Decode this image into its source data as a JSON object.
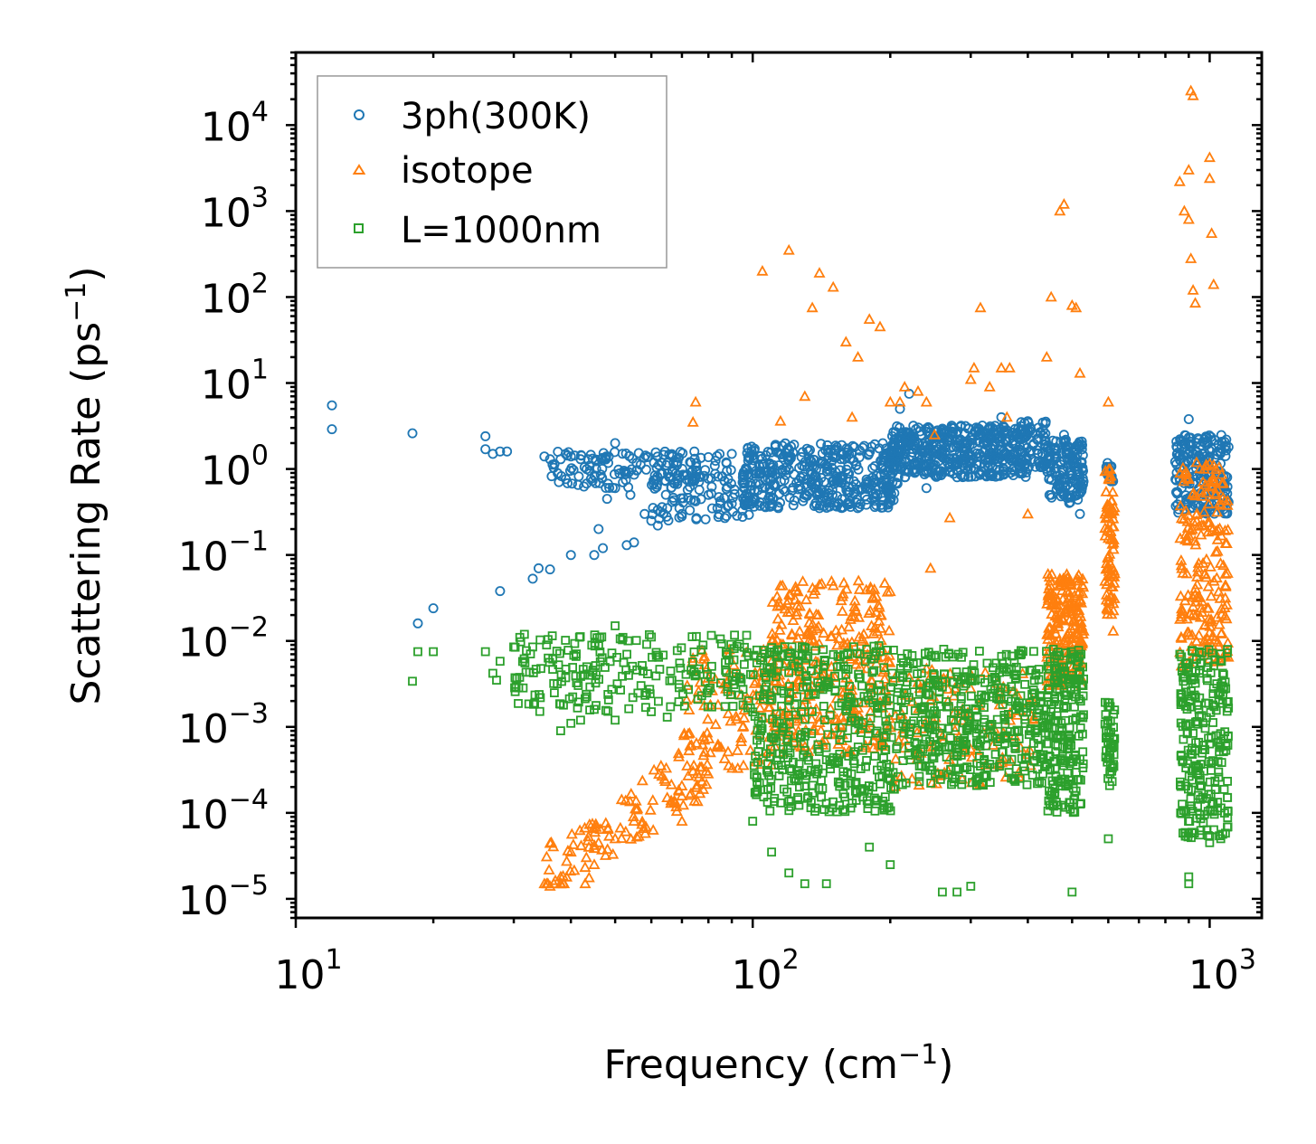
{
  "chart_data": {
    "type": "scatter",
    "xscale": "log",
    "yscale": "log",
    "xlim": [
      10,
      1300
    ],
    "ylim": [
      6e-06,
      70000
    ],
    "x_ticks": [
      {
        "value": 10,
        "base": "10",
        "exp": "1"
      },
      {
        "value": 100,
        "base": "10",
        "exp": "2"
      },
      {
        "value": 1000,
        "base": "10",
        "exp": "3"
      }
    ],
    "y_ticks": [
      {
        "value": 1e-05,
        "base": "10",
        "exp": "−5"
      },
      {
        "value": 0.0001,
        "base": "10",
        "exp": "−4"
      },
      {
        "value": 0.001,
        "base": "10",
        "exp": "−3"
      },
      {
        "value": 0.01,
        "base": "10",
        "exp": "−2"
      },
      {
        "value": 0.1,
        "base": "10",
        "exp": "−1"
      },
      {
        "value": 1,
        "base": "10",
        "exp": "0"
      },
      {
        "value": 10,
        "base": "10",
        "exp": "1"
      },
      {
        "value": 100,
        "base": "10",
        "exp": "2"
      },
      {
        "value": 1000,
        "base": "10",
        "exp": "3"
      },
      {
        "value": 10000,
        "base": "10",
        "exp": "4"
      }
    ],
    "xlabel": {
      "text": "Frequency (cm",
      "sup": "−1",
      "suffix": ")"
    },
    "ylabel": {
      "text": "Scattering Rate (ps",
      "sup": "−1",
      "suffix": ")"
    },
    "legend_position": "top-left",
    "series": [
      {
        "name": "3ph(300K)",
        "color": "#1f77b4",
        "marker": "circle",
        "points": [
          [
            12,
            5.5
          ],
          [
            12,
            2.9
          ],
          [
            18,
            2.6
          ],
          [
            18.5,
            0.016
          ],
          [
            20,
            0.024
          ],
          [
            26,
            2.4
          ],
          [
            26,
            1.7
          ],
          [
            27,
            1.5
          ],
          [
            28,
            1.6
          ],
          [
            29,
            1.6
          ],
          [
            28,
            0.038
          ],
          [
            33,
            0.053
          ],
          [
            34,
            0.07
          ],
          [
            35,
            1.4
          ],
          [
            36,
            1.3
          ],
          [
            36,
            0.068
          ],
          [
            38,
            1.3
          ],
          [
            40,
            1.4
          ],
          [
            40,
            0.1
          ],
          [
            42,
            1.3
          ],
          [
            44,
            1.1
          ],
          [
            45,
            0.1
          ],
          [
            46,
            0.2
          ],
          [
            47,
            0.12
          ],
          [
            48,
            0.45
          ],
          [
            50,
            0.6
          ],
          [
            50,
            2.0
          ],
          [
            52,
            0.7
          ],
          [
            53,
            0.13
          ],
          [
            54,
            0.5
          ],
          [
            55,
            0.14
          ],
          [
            58,
            0.3
          ],
          [
            60,
            0.25
          ],
          [
            62,
            0.22
          ],
          [
            65,
            0.35
          ],
          [
            70,
            0.3
          ],
          [
            75,
            0.42
          ],
          [
            80,
            0.5
          ],
          [
            85,
            0.4
          ],
          [
            90,
            1.5
          ],
          [
            95,
            0.7
          ],
          [
            105,
            0.6
          ],
          [
            130,
            0.5
          ],
          [
            140,
            0.35
          ],
          [
            180,
            0.7
          ],
          [
            200,
            0.6
          ],
          [
            210,
            5.0
          ],
          [
            220,
            7.5
          ],
          [
            240,
            0.6
          ],
          [
            260,
            1.5
          ],
          [
            300,
            2.3
          ],
          [
            330,
            0.9
          ],
          [
            350,
            4.0
          ],
          [
            400,
            3.6
          ],
          [
            420,
            1.5
          ],
          [
            450,
            0.5
          ],
          [
            480,
            2.5
          ],
          [
            500,
            1.2
          ],
          [
            520,
            0.3
          ],
          [
            600,
            0.9
          ],
          [
            860,
            1.0
          ],
          [
            900,
            3.8
          ],
          [
            920,
            0.5
          ],
          [
            1000,
            1.4
          ],
          [
            1050,
            0.6
          ],
          [
            1100,
            1.8
          ]
        ],
        "bands": [
          {
            "x0": 36,
            "x1": 90,
            "y0": 0.6,
            "y1": 1.6,
            "n": 160
          },
          {
            "x0": 60,
            "x1": 100,
            "y0": 0.25,
            "y1": 0.9,
            "n": 80
          },
          {
            "x0": 95,
            "x1": 210,
            "y0": 0.35,
            "y1": 2.0,
            "n": 420
          },
          {
            "x0": 200,
            "x1": 400,
            "y0": 0.8,
            "y1": 3.2,
            "n": 460
          },
          {
            "x0": 380,
            "x1": 440,
            "y0": 1.0,
            "y1": 3.6,
            "n": 60
          },
          {
            "x0": 440,
            "x1": 530,
            "y0": 0.4,
            "y1": 2.2,
            "n": 140
          },
          {
            "x0": 590,
            "x1": 615,
            "y0": 0.7,
            "y1": 1.2,
            "n": 20
          },
          {
            "x0": 840,
            "x1": 1100,
            "y0": 0.3,
            "y1": 2.5,
            "n": 200
          }
        ]
      },
      {
        "name": "isotope",
        "color": "#ff7f0e",
        "marker": "triangle",
        "points": [
          [
            35,
            1.5e-05
          ],
          [
            36,
            1.4e-05
          ],
          [
            38,
            1.8e-05
          ],
          [
            40,
            3.5e-05
          ],
          [
            43,
            1.5e-05
          ],
          [
            45,
            2.5e-05
          ],
          [
            50,
            5e-05
          ],
          [
            55,
            8e-05
          ],
          [
            65,
            0.00015
          ],
          [
            70,
            8e-05
          ],
          [
            75,
            6.0
          ],
          [
            74,
            3.5
          ],
          [
            105,
            200
          ],
          [
            115,
            3.6
          ],
          [
            120,
            350
          ],
          [
            130,
            7.0
          ],
          [
            135,
            75
          ],
          [
            140,
            190
          ],
          [
            150,
            130
          ],
          [
            160,
            30
          ],
          [
            165,
            4.0
          ],
          [
            170,
            20
          ],
          [
            180,
            55
          ],
          [
            190,
            45
          ],
          [
            200,
            6.0
          ],
          [
            210,
            6.0
          ],
          [
            215,
            9.0
          ],
          [
            230,
            8.0
          ],
          [
            240,
            6.0
          ],
          [
            245,
            0.07
          ],
          [
            250,
            2.5
          ],
          [
            270,
            0.27
          ],
          [
            300,
            11
          ],
          [
            305,
            15
          ],
          [
            315,
            75
          ],
          [
            330,
            9.0
          ],
          [
            350,
            15
          ],
          [
            360,
            4.0
          ],
          [
            365,
            15
          ],
          [
            400,
            0.3
          ],
          [
            440,
            20
          ],
          [
            450,
            100
          ],
          [
            470,
            1000
          ],
          [
            480,
            1200
          ],
          [
            500,
            80
          ],
          [
            510,
            75
          ],
          [
            520,
            13
          ],
          [
            600,
            6.0
          ],
          [
            610,
            0.3
          ],
          [
            615,
            0.013
          ],
          [
            860,
            2200
          ],
          [
            880,
            1000
          ],
          [
            900,
            800
          ],
          [
            900,
            3000
          ],
          [
            910,
            280
          ],
          [
            920,
            120
          ],
          [
            930,
            85
          ],
          [
            1000,
            4200
          ],
          [
            1000,
            2400
          ],
          [
            1010,
            550
          ],
          [
            1020,
            140
          ],
          [
            910,
            25000
          ],
          [
            920,
            22000
          ]
        ],
        "bands": [
          {
            "x0": 34,
            "x1": 80,
            "y0": 1.5e-05,
            "y1": 0.0007,
            "n": 120,
            "rising": true
          },
          {
            "x0": 70,
            "x1": 110,
            "y0": 0.0003,
            "y1": 0.008,
            "n": 100
          },
          {
            "x0": 110,
            "x1": 200,
            "y0": 0.0005,
            "y1": 0.05,
            "n": 320
          },
          {
            "x0": 200,
            "x1": 420,
            "y0": 0.0002,
            "y1": 0.005,
            "n": 120
          },
          {
            "x0": 440,
            "x1": 530,
            "y0": 0.003,
            "y1": 0.06,
            "n": 200
          },
          {
            "x0": 590,
            "x1": 620,
            "y0": 0.02,
            "y1": 1.0,
            "n": 80
          },
          {
            "x0": 860,
            "x1": 1100,
            "y0": 0.005,
            "y1": 1.2,
            "n": 200
          }
        ]
      },
      {
        "name": "L=1000nm",
        "color": "#2ca02c",
        "marker": "square",
        "points": [
          [
            18,
            0.0034
          ],
          [
            18.5,
            0.0075
          ],
          [
            20,
            0.0075
          ],
          [
            26,
            0.0075
          ],
          [
            27,
            0.0042
          ],
          [
            27.5,
            0.0035
          ],
          [
            28,
            0.0058
          ],
          [
            30,
            0.0085
          ],
          [
            33,
            0.0085
          ],
          [
            38,
            0.0009
          ],
          [
            40,
            0.0011
          ],
          [
            42,
            0.0012
          ],
          [
            45,
            0.0016
          ],
          [
            50,
            0.0012
          ],
          [
            50,
            0.015
          ],
          [
            52,
            0.011
          ],
          [
            60,
            0.0015
          ],
          [
            65,
            0.0013
          ],
          [
            100,
            8e-05
          ],
          [
            110,
            3.5e-05
          ],
          [
            120,
            2e-05
          ],
          [
            130,
            1.5e-05
          ],
          [
            145,
            1.5e-05
          ],
          [
            180,
            4e-05
          ],
          [
            200,
            2.5e-05
          ],
          [
            260,
            1.2e-05
          ],
          [
            280,
            1.2e-05
          ],
          [
            300,
            1.4e-05
          ],
          [
            500,
            1.2e-05
          ],
          [
            510,
            0.00018
          ],
          [
            600,
            5e-05
          ],
          [
            900,
            1.5e-05
          ],
          [
            900,
            1.8e-05
          ],
          [
            1000,
            4.5e-05
          ]
        ],
        "bands": [
          {
            "x0": 30,
            "x1": 100,
            "y0": 0.0015,
            "y1": 0.012,
            "n": 220
          },
          {
            "x0": 100,
            "x1": 210,
            "y0": 0.0001,
            "y1": 0.009,
            "n": 420
          },
          {
            "x0": 210,
            "x1": 440,
            "y0": 0.0002,
            "y1": 0.008,
            "n": 420
          },
          {
            "x0": 440,
            "x1": 530,
            "y0": 0.0001,
            "y1": 0.008,
            "n": 200
          },
          {
            "x0": 590,
            "x1": 620,
            "y0": 0.0002,
            "y1": 0.002,
            "n": 50
          },
          {
            "x0": 860,
            "x1": 1100,
            "y0": 5e-05,
            "y1": 0.008,
            "n": 240
          }
        ]
      }
    ]
  }
}
